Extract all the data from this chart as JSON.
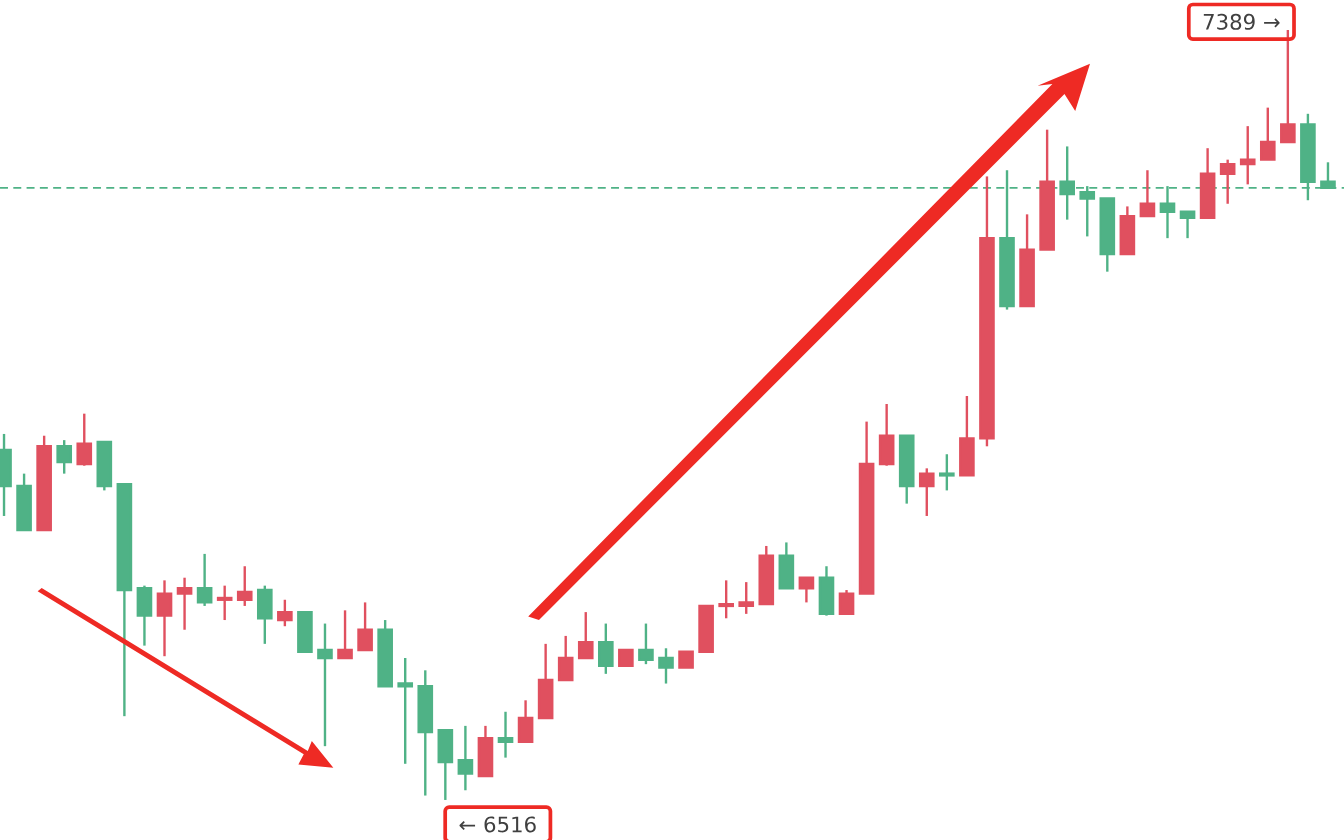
{
  "chart_data": {
    "type": "candlestick",
    "categories": [
      null,
      null,
      null,
      null,
      null,
      null,
      null,
      null,
      null,
      null,
      null,
      null,
      null,
      null,
      null,
      null,
      null,
      null,
      null,
      null,
      null,
      null,
      null,
      null,
      null,
      null,
      null,
      null,
      null,
      null,
      null,
      null,
      null,
      null,
      null,
      null,
      null,
      null,
      null,
      null,
      null,
      null,
      null,
      null,
      null,
      null,
      null,
      null,
      null,
      null,
      null,
      null,
      null,
      null,
      null,
      null,
      null,
      null,
      null,
      null,
      null,
      null,
      null,
      null,
      null,
      null,
      null
    ],
    "ohlc": [
      [
        6913,
        6931,
        6838,
        6872
      ],
      [
        6872,
        6886,
        6822,
        6822
      ],
      [
        6822,
        6929,
        6822,
        6917
      ],
      [
        6917,
        6924,
        6886,
        6899
      ],
      [
        6897,
        6954,
        6895,
        6920
      ],
      [
        6922,
        6922,
        6867,
        6872
      ],
      [
        6874,
        6874,
        6611,
        6754
      ],
      [
        6756,
        6759,
        6691,
        6725
      ],
      [
        6725,
        6765,
        6679,
        6750
      ],
      [
        6750,
        6768,
        6709,
        6756
      ],
      [
        6756,
        6795,
        6736,
        6740
      ],
      [
        6743,
        6759,
        6720,
        6745
      ],
      [
        6743,
        6781,
        6736,
        6752
      ],
      [
        6754,
        6759,
        6693,
        6722
      ],
      [
        6720,
        6743,
        6713,
        6729
      ],
      [
        6729,
        6729,
        6684,
        6684
      ],
      [
        6686,
        6716,
        6577,
        6677
      ],
      [
        6677,
        6731,
        6677,
        6686
      ],
      [
        6686,
        6740,
        6686,
        6709
      ],
      [
        6709,
        6720,
        6645,
        6645
      ],
      [
        6648,
        6677,
        6557,
        6645
      ],
      [
        6645,
        6663,
        6521,
        6593
      ],
      [
        6595,
        6595,
        6516,
        6559
      ],
      [
        6561,
        6600,
        6527,
        6546
      ],
      [
        6543,
        6600,
        6543,
        6586
      ],
      [
        6586,
        6616,
        6564,
        6582
      ],
      [
        6582,
        6629,
        6582,
        6609
      ],
      [
        6609,
        6693,
        6609,
        6652
      ],
      [
        6652,
        6702,
        6652,
        6677
      ],
      [
        6677,
        6729,
        6677,
        6695
      ],
      [
        6695,
        6716,
        6659,
        6668
      ],
      [
        6668,
        6686,
        6668,
        6686
      ],
      [
        6686,
        6716,
        6670,
        6675
      ],
      [
        6677,
        6688,
        6648,
        6666
      ],
      [
        6666,
        6684,
        6666,
        6684
      ],
      [
        6684,
        6736,
        6684,
        6736
      ],
      [
        6736,
        6765,
        6722,
        6738
      ],
      [
        6736,
        6763,
        6727,
        6740
      ],
      [
        6738,
        6804,
        6738,
        6793
      ],
      [
        6793,
        6808,
        6756,
        6756
      ],
      [
        6756,
        6768,
        6740,
        6768
      ],
      [
        6768,
        6781,
        6725,
        6727
      ],
      [
        6727,
        6754,
        6727,
        6750
      ],
      [
        6750,
        6945,
        6750,
        6897
      ],
      [
        6897,
        6965,
        6895,
        6929
      ],
      [
        6929,
        6929,
        6852,
        6872
      ],
      [
        6872,
        6892,
        6838,
        6886
      ],
      [
        6886,
        6908,
        6867,
        6884
      ],
      [
        6884,
        6974,
        6884,
        6926
      ],
      [
        6926,
        7223,
        6917,
        7153
      ],
      [
        7153,
        7230,
        7072,
        7076
      ],
      [
        7076,
        7180,
        7076,
        7140
      ],
      [
        7140,
        7276,
        7140,
        7217
      ],
      [
        7217,
        7257,
        7174,
        7203
      ],
      [
        7205,
        7212,
        7155,
        7198
      ],
      [
        7198,
        7198,
        7115,
        7135
      ],
      [
        7135,
        7189,
        7135,
        7178
      ],
      [
        7178,
        7230,
        7178,
        7192
      ],
      [
        7192,
        7212,
        7153,
        7183
      ],
      [
        7183,
        7183,
        7153,
        7176
      ],
      [
        7176,
        7255,
        7176,
        7226
      ],
      [
        7226,
        7242,
        7192,
        7237
      ],
      [
        7237,
        7280,
        7214,
        7242
      ],
      [
        7242,
        7301,
        7242,
        7262
      ],
      [
        7262,
        7389,
        7262,
        7282
      ],
      [
        7282,
        7294,
        7196,
        7217
      ],
      [
        7217,
        7239,
        7210,
        7210
      ]
    ],
    "colors": [
      "#4fb286",
      "#4fb286",
      "#e0505f",
      "#4fb286",
      "#e0505f",
      "#4fb286",
      "#4fb286",
      "#4fb286",
      "#e0505f",
      "#e0505f",
      "#4fb286",
      "#e0505f",
      "#e0505f",
      "#4fb286",
      "#e0505f",
      "#4fb286",
      "#4fb286",
      "#e0505f",
      "#e0505f",
      "#4fb286",
      "#4fb286",
      "#4fb286",
      "#4fb286",
      "#4fb286",
      "#e0505f",
      "#4fb286",
      "#e0505f",
      "#e0505f",
      "#e0505f",
      "#e0505f",
      "#4fb286",
      "#e0505f",
      "#4fb286",
      "#4fb286",
      "#e0505f",
      "#e0505f",
      "#e0505f",
      "#e0505f",
      "#e0505f",
      "#4fb286",
      "#e0505f",
      "#4fb286",
      "#e0505f",
      "#e0505f",
      "#e0505f",
      "#4fb286",
      "#e0505f",
      "#4fb286",
      "#e0505f",
      "#e0505f",
      "#4fb286",
      "#e0505f",
      "#e0505f",
      "#4fb286",
      "#4fb286",
      "#4fb286",
      "#e0505f",
      "#e0505f",
      "#4fb286",
      "#4fb286",
      "#e0505f",
      "#e0505f",
      "#e0505f",
      "#e0505f",
      "#e0505f",
      "#4fb286",
      "#4fb286"
    ],
    "ref_lines": [
      {
        "axis": "y",
        "value": 7210,
        "color": "#4fb286",
        "line_style": "dashed"
      }
    ],
    "annotations": [
      "7389 →",
      "← 6516"
    ]
  }
}
